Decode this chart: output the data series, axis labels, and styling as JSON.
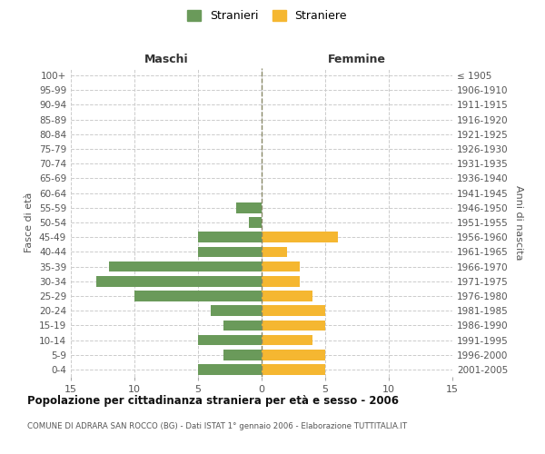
{
  "age_groups": [
    "0-4",
    "5-9",
    "10-14",
    "15-19",
    "20-24",
    "25-29",
    "30-34",
    "35-39",
    "40-44",
    "45-49",
    "50-54",
    "55-59",
    "60-64",
    "65-69",
    "70-74",
    "75-79",
    "80-84",
    "85-89",
    "90-94",
    "95-99",
    "100+"
  ],
  "birth_years": [
    "2001-2005",
    "1996-2000",
    "1991-1995",
    "1986-1990",
    "1981-1985",
    "1976-1980",
    "1971-1975",
    "1966-1970",
    "1961-1965",
    "1956-1960",
    "1951-1955",
    "1946-1950",
    "1941-1945",
    "1936-1940",
    "1931-1935",
    "1926-1930",
    "1921-1925",
    "1916-1920",
    "1911-1915",
    "1906-1910",
    "≤ 1905"
  ],
  "maschi": [
    5,
    3,
    5,
    3,
    4,
    10,
    13,
    12,
    5,
    5,
    1,
    2,
    0,
    0,
    0,
    0,
    0,
    0,
    0,
    0,
    0
  ],
  "femmine": [
    5,
    5,
    4,
    5,
    5,
    4,
    3,
    3,
    2,
    6,
    0,
    0,
    0,
    0,
    0,
    0,
    0,
    0,
    0,
    0,
    0
  ],
  "color_maschi": "#6a9a5a",
  "color_femmine": "#f5b731",
  "title": "Popolazione per cittadinanza straniera per età e sesso - 2006",
  "subtitle": "COMUNE DI ADRARA SAN ROCCO (BG) - Dati ISTAT 1° gennaio 2006 - Elaborazione TUTTITALIA.IT",
  "xlabel_left": "Maschi",
  "xlabel_right": "Femmine",
  "ylabel_left": "Fasce di età",
  "ylabel_right": "Anni di nascita",
  "legend_maschi": "Stranieri",
  "legend_femmine": "Straniere",
  "xlim": 15,
  "bg_color": "#ffffff",
  "grid_color": "#cccccc"
}
